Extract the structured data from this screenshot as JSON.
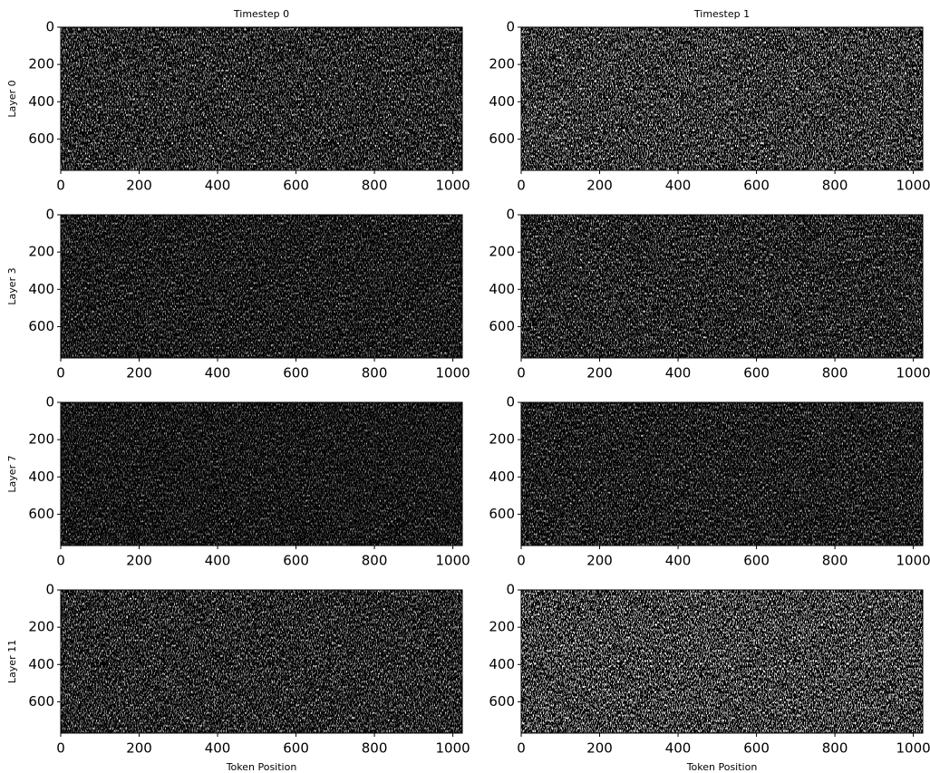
{
  "chart_data": [
    {
      "type": "heatmap",
      "title": "Timestep 0",
      "ylabel": "Layer 0",
      "xlim": [
        0,
        1024
      ],
      "ylim": [
        768,
        0
      ],
      "xticks": [
        0,
        200,
        400,
        600,
        800,
        1000
      ],
      "yticks": [
        0,
        200,
        400,
        600
      ]
    },
    {
      "type": "heatmap",
      "title": "Timestep 1",
      "xlim": [
        0,
        1024
      ],
      "ylim": [
        768,
        0
      ],
      "xticks": [
        0,
        200,
        400,
        600,
        800,
        1000
      ],
      "yticks": [
        0,
        200,
        400,
        600
      ]
    },
    {
      "type": "heatmap",
      "ylabel": "Layer 3",
      "xlim": [
        0,
        1024
      ],
      "ylim": [
        768,
        0
      ],
      "xticks": [
        0,
        200,
        400,
        600,
        800,
        1000
      ],
      "yticks": [
        0,
        200,
        400,
        600
      ]
    },
    {
      "type": "heatmap",
      "xlim": [
        0,
        1024
      ],
      "ylim": [
        768,
        0
      ],
      "xticks": [
        0,
        200,
        400,
        600,
        800,
        1000
      ],
      "yticks": [
        0,
        200,
        400,
        600
      ]
    },
    {
      "type": "heatmap",
      "ylabel": "Layer 7",
      "xlim": [
        0,
        1024
      ],
      "ylim": [
        768,
        0
      ],
      "xticks": [
        0,
        200,
        400,
        600,
        800,
        1000
      ],
      "yticks": [
        0,
        200,
        400,
        600
      ]
    },
    {
      "type": "heatmap",
      "xlim": [
        0,
        1024
      ],
      "ylim": [
        768,
        0
      ],
      "xticks": [
        0,
        200,
        400,
        600,
        800,
        1000
      ],
      "yticks": [
        0,
        200,
        400,
        600
      ]
    },
    {
      "type": "heatmap",
      "ylabel": "Layer 11",
      "xlabel": "Token Position",
      "xlim": [
        0,
        1024
      ],
      "ylim": [
        768,
        0
      ],
      "xticks": [
        0,
        200,
        400,
        600,
        800,
        1000
      ],
      "yticks": [
        0,
        200,
        400,
        600
      ]
    },
    {
      "type": "heatmap",
      "xlabel": "Token Position",
      "xlim": [
        0,
        1024
      ],
      "ylim": [
        768,
        0
      ],
      "xticks": [
        0,
        200,
        400,
        600,
        800,
        1000
      ],
      "yticks": [
        0,
        200,
        400,
        600
      ]
    }
  ]
}
